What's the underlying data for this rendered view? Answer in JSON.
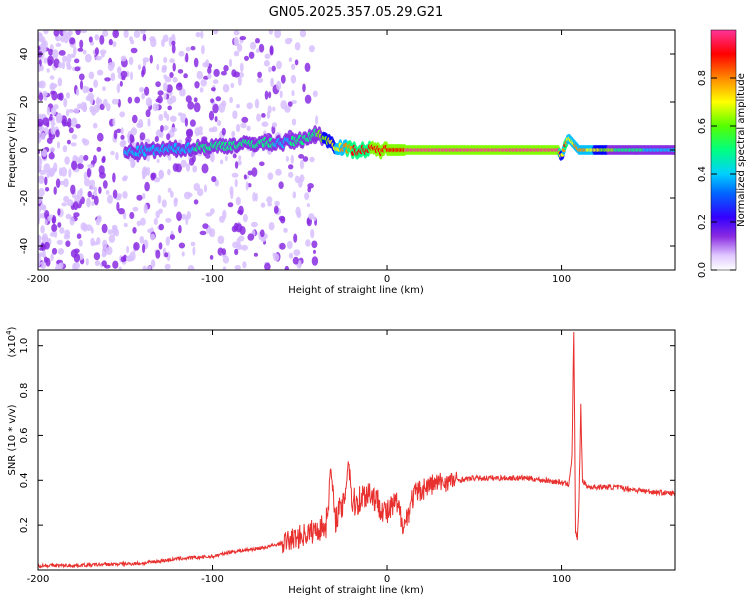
{
  "page": {
    "title": "GN05.2025.357.05.29.G21"
  },
  "chart_data": [
    {
      "type": "heatmap",
      "title": "GN05.2025.357.05.29.G21",
      "xlabel": "Height of straight line (km)",
      "ylabel": "Frequency (Hz)",
      "xlim": [
        -200,
        165
      ],
      "ylim": [
        -50,
        50
      ],
      "x_ticks": [
        -200,
        -100,
        0,
        100
      ],
      "y_ticks": [
        -40,
        -20,
        0,
        20,
        40
      ],
      "colorbar": {
        "label": "Normalized spectral amplitude",
        "range": [
          0,
          1
        ],
        "ticks": [
          "0.0",
          "0.2",
          "0.4",
          "0.6",
          "0.8"
        ],
        "colormap": [
          "#ffffff",
          "#d8c0ff",
          "#8a2be2",
          "#0000ff",
          "#00bfff",
          "#00ff7f",
          "#7fff00",
          "#ffff00",
          "#ff8c00",
          "#ff0000",
          "#ff3399"
        ]
      },
      "ridge": {
        "x": [
          -150,
          -130,
          -110,
          -90,
          -70,
          -60,
          -50,
          -40,
          -30,
          -20,
          -10,
          0,
          10,
          50,
          98,
          100,
          102,
          104,
          110,
          130,
          165
        ],
        "frequency": [
          -1,
          0,
          1,
          2,
          3,
          3,
          4,
          7,
          2,
          0,
          0,
          0,
          0,
          0,
          0,
          -3,
          2,
          5,
          0,
          0,
          0
        ],
        "amplitude": [
          0.35,
          0.4,
          0.45,
          0.45,
          0.5,
          0.4,
          0.5,
          0.55,
          0.7,
          0.85,
          0.9,
          0.9,
          0.95,
          0.97,
          0.97,
          0.6,
          0.9,
          0.7,
          0.8,
          0.55,
          0.35
        ]
      }
    },
    {
      "type": "line",
      "xlabel": "Height of straight line (km)",
      "ylabel": "SNR (10 * v/v)",
      "y_multiplier_label": "(x10",
      "y_multiplier_exp": "4",
      "y_multiplier_close": ")",
      "xlim": [
        -200,
        165
      ],
      "ylim": [
        0,
        1.07
      ],
      "x_ticks": [
        -200,
        -100,
        0,
        100
      ],
      "y_ticks": [
        0.2,
        0.4,
        0.6,
        0.8,
        1.0
      ],
      "line_color": "#e8302e",
      "series": [
        {
          "x": [
            -200,
            -180,
            -160,
            -140,
            -120,
            -100,
            -90,
            -80,
            -70,
            -60,
            -50,
            -40,
            -35,
            -32,
            -30,
            -28,
            -25,
            -22,
            -20,
            -18,
            -15,
            -12,
            -10,
            -5,
            0,
            5,
            10,
            15,
            20,
            25,
            30,
            40,
            50,
            60,
            70,
            80,
            90,
            100,
            104,
            106,
            107,
            108,
            109,
            110,
            111,
            112,
            115,
            120,
            130,
            140,
            150,
            165
          ],
          "y": [
            0.02,
            0.02,
            0.025,
            0.03,
            0.05,
            0.06,
            0.08,
            0.09,
            0.1,
            0.12,
            0.15,
            0.18,
            0.2,
            0.45,
            0.22,
            0.26,
            0.28,
            0.5,
            0.3,
            0.3,
            0.32,
            0.34,
            0.35,
            0.3,
            0.25,
            0.3,
            0.2,
            0.33,
            0.36,
            0.38,
            0.39,
            0.4,
            0.41,
            0.41,
            0.41,
            0.41,
            0.4,
            0.39,
            0.38,
            0.5,
            1.07,
            0.17,
            0.14,
            0.3,
            0.73,
            0.4,
            0.37,
            0.37,
            0.37,
            0.36,
            0.35,
            0.34
          ]
        }
      ]
    }
  ]
}
